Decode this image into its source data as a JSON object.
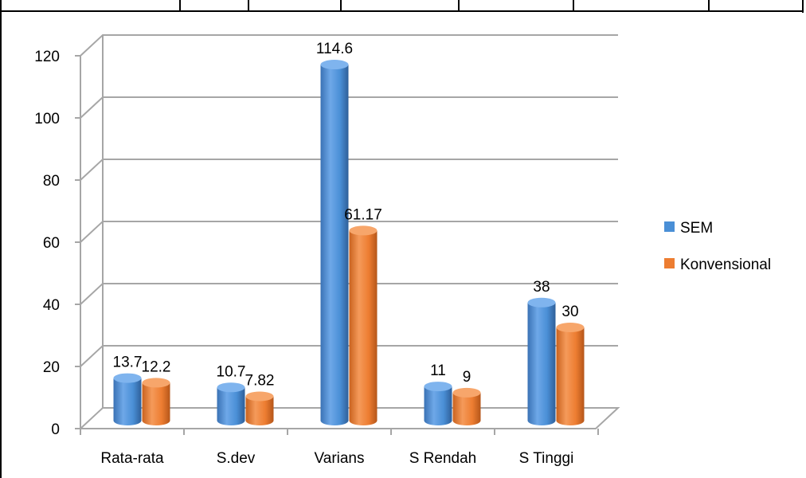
{
  "chart_data": {
    "type": "bar",
    "title": "",
    "xlabel": "",
    "ylabel": "",
    "categories": [
      "Rata-rata",
      "S.dev",
      "Varians",
      "S Rendah",
      "S Tinggi"
    ],
    "series": [
      {
        "name": "SEM",
        "values": [
          13.7,
          10.7,
          114.6,
          11,
          38
        ],
        "labels": [
          "13.7",
          "10.7",
          "114.6",
          "11",
          "38"
        ],
        "color": "#4a8fd6"
      },
      {
        "name": "Konvensional",
        "values": [
          12.2,
          7.82,
          61.17,
          9,
          30
        ],
        "labels": [
          "12.2",
          "7.82",
          "61.17",
          "9",
          "30"
        ],
        "color": "#ed7d31"
      }
    ],
    "ylim": [
      0,
      120
    ],
    "yticks": [
      "0",
      "20",
      "40",
      "60",
      "80",
      "100",
      "120"
    ],
    "grid": true,
    "style": "3d-cylinder",
    "legend": {
      "position": "right"
    }
  }
}
